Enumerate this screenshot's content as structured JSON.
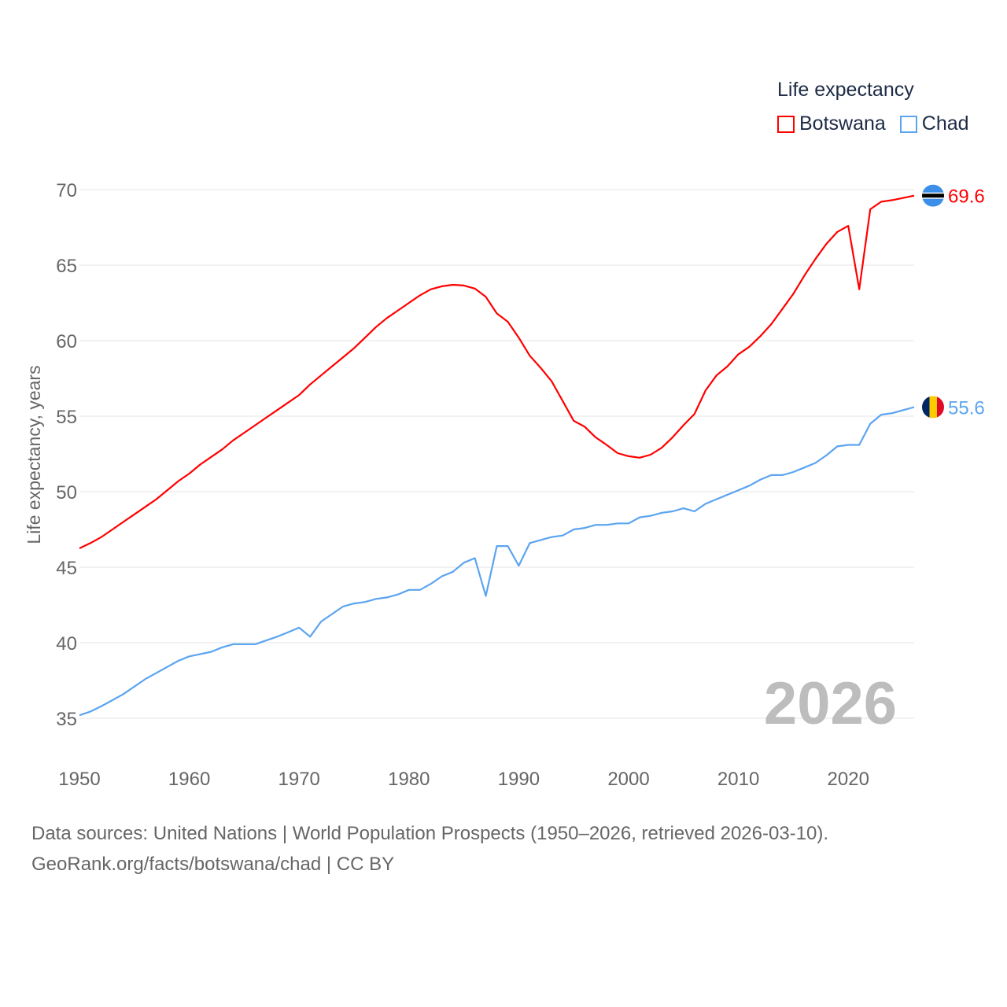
{
  "chart_data": {
    "type": "line",
    "title": "",
    "legend_title": "Life expectancy",
    "legend_position": "top-right",
    "ylabel": "Life expectancy, years",
    "xlabel": "",
    "xlim": [
      1950,
      2026
    ],
    "ylim": [
      35,
      70
    ],
    "x_ticks": [
      1950,
      1960,
      1970,
      1980,
      1990,
      2000,
      2010,
      2020
    ],
    "y_ticks": [
      35,
      40,
      45,
      50,
      55,
      60,
      65,
      70
    ],
    "grid": true,
    "watermark_year": "2026",
    "series": [
      {
        "name": "Botswana",
        "color": "#ff0000",
        "end_label": "69.6",
        "flag": "botswana-flag",
        "x_start": 1950,
        "values": [
          46.25,
          46.6,
          47.0,
          47.5,
          48.0,
          48.5,
          49.0,
          49.5,
          50.1,
          50.7,
          51.2,
          51.8,
          52.3,
          52.8,
          53.4,
          53.9,
          54.4,
          54.9,
          55.4,
          55.9,
          56.4,
          57.1,
          57.7,
          58.3,
          58.9,
          59.5,
          60.2,
          60.9,
          61.5,
          62.0,
          62.5,
          63.0,
          63.4,
          63.6,
          63.7,
          63.65,
          63.45,
          62.9,
          61.8,
          61.25,
          60.2,
          59.0,
          58.2,
          57.3,
          56.0,
          54.7,
          54.3,
          53.6,
          53.1,
          52.55,
          52.35,
          52.25,
          52.45,
          52.9,
          53.6,
          54.4,
          55.15,
          56.7,
          57.7,
          58.3,
          59.1,
          59.6,
          60.3,
          61.1,
          62.1,
          63.1,
          64.3,
          65.4,
          66.4,
          67.2,
          67.6,
          63.4,
          68.7,
          69.2,
          69.3,
          69.45,
          69.6
        ]
      },
      {
        "name": "Chad",
        "color": "#5ba4f0",
        "end_label": "55.6",
        "flag": "chad-flag",
        "x_start": 1950,
        "values": [
          35.2,
          35.45,
          35.8,
          36.2,
          36.6,
          37.1,
          37.6,
          38.0,
          38.4,
          38.8,
          39.1,
          39.25,
          39.4,
          39.7,
          39.9,
          39.9,
          39.9,
          40.15,
          40.4,
          40.7,
          41.0,
          40.4,
          41.4,
          41.9,
          42.4,
          42.6,
          42.7,
          42.9,
          43.0,
          43.2,
          43.5,
          43.5,
          43.9,
          44.4,
          44.7,
          45.3,
          45.6,
          43.1,
          46.4,
          46.4,
          45.1,
          46.6,
          46.8,
          47.0,
          47.1,
          47.5,
          47.6,
          47.8,
          47.8,
          47.9,
          47.9,
          48.3,
          48.4,
          48.6,
          48.7,
          48.9,
          48.7,
          49.2,
          49.5,
          49.8,
          50.1,
          50.4,
          50.8,
          51.1,
          51.1,
          51.3,
          51.6,
          51.9,
          52.4,
          53.0,
          53.1,
          53.1,
          54.5,
          55.1,
          55.2,
          55.4,
          55.6
        ]
      }
    ]
  },
  "footer": {
    "sources": "Data sources: United Nations | World Population Prospects (1950–2026, retrieved 2026-03-10).",
    "attribution": "GeoRank.org/facts/botswana/chad | CC BY"
  }
}
